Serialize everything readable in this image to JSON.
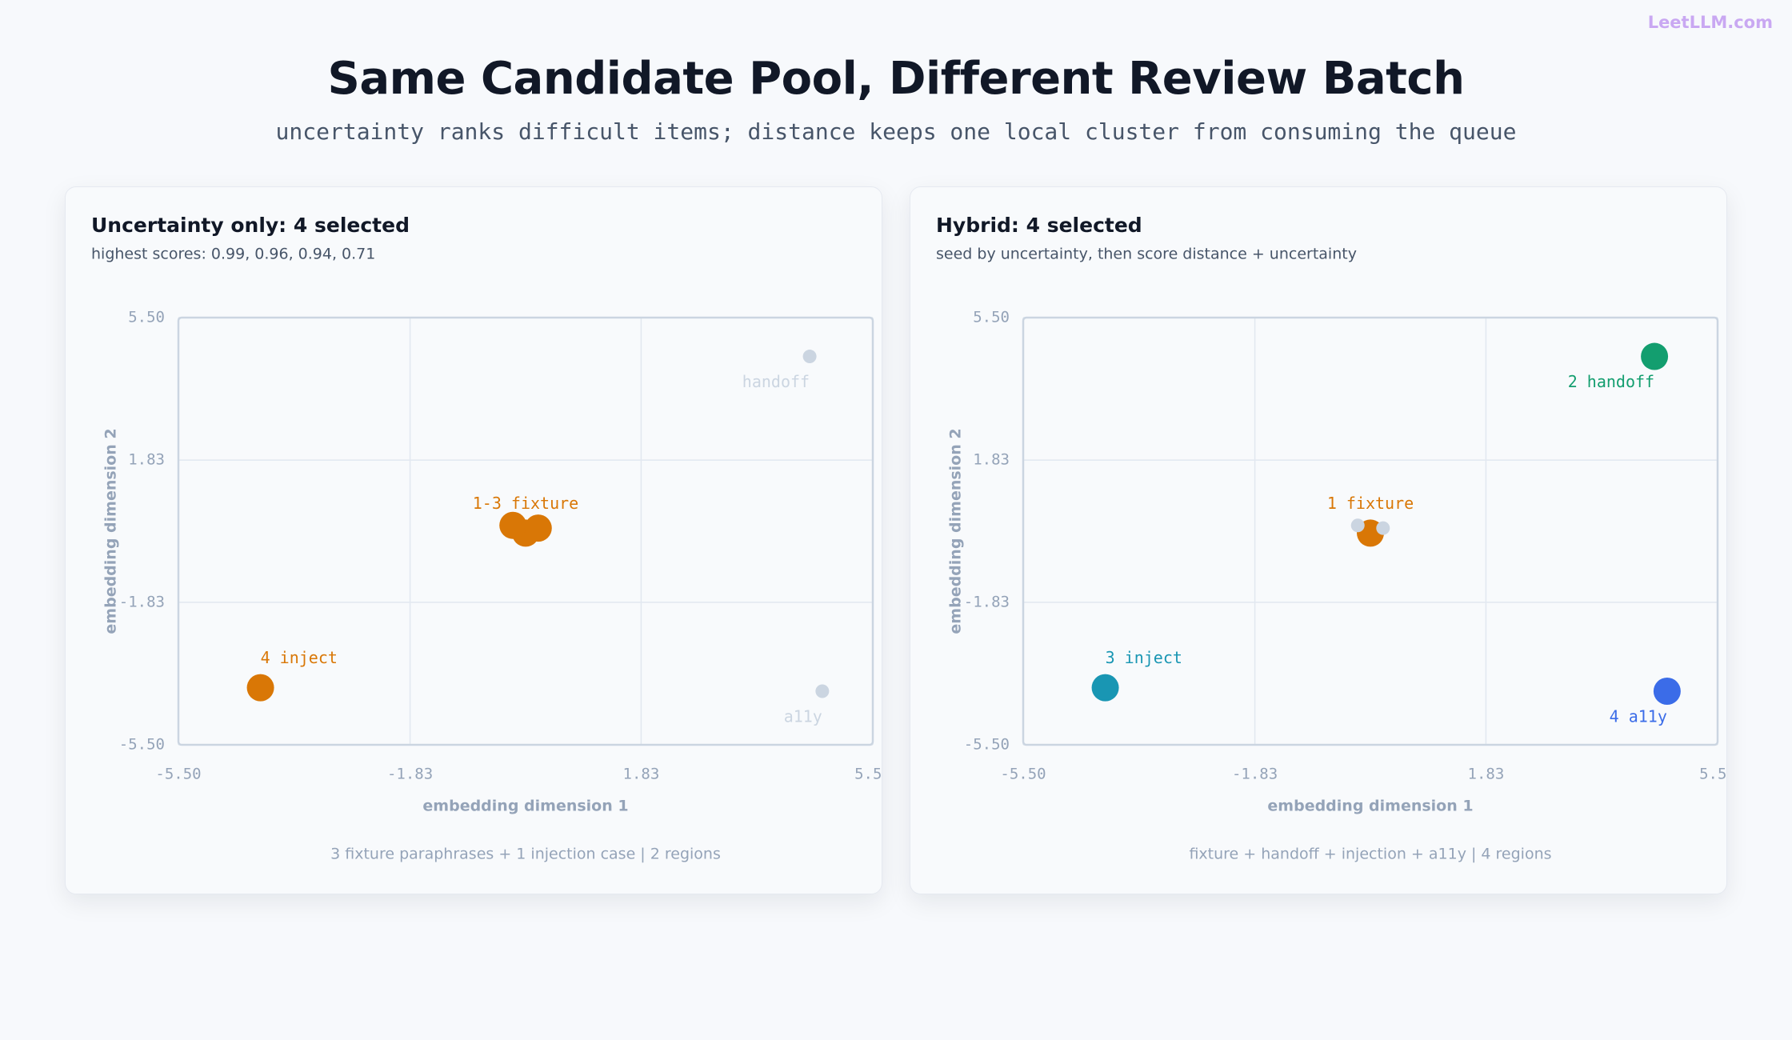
{
  "watermark": "LeetLLM.com",
  "title": "Same Candidate Pool, Different Review Batch",
  "subtitle": "uncertainty ranks difficult items; distance keeps one local cluster from consuming the queue",
  "chart_data": [
    {
      "type": "scatter",
      "title": "Uncertainty only: 4 selected",
      "subtitle": "highest scores: 0.99, 0.96, 0.94, 0.71",
      "x_label": "embedding dimension 1",
      "y_label": "embedding dimension 2",
      "footer": "3 fixture paraphrases + 1 injection case | 2 regions",
      "xlim": [
        -5.5,
        5.5
      ],
      "ylim": [
        -5.5,
        5.5
      ],
      "xticks": [
        {
          "value": -5.5,
          "label": "-5.50"
        },
        -1.83,
        1.83,
        {
          "value": 5.5,
          "label": "5.50"
        }
      ],
      "yticks": [
        {
          "value": -5.5,
          "label": "-5.50"
        },
        -1.83,
        1.83,
        {
          "value": 5.5,
          "label": "5.50"
        }
      ],
      "grid": true,
      "points": [
        {
          "x": 0.0,
          "y": -0.05,
          "selected": true,
          "color": "#d97706",
          "label": "1-3 fixture"
        },
        {
          "x": -0.2,
          "y": 0.15,
          "selected": true,
          "color": "#d97706"
        },
        {
          "x": 0.2,
          "y": 0.08,
          "selected": true,
          "color": "#d97706"
        },
        {
          "x": -4.2,
          "y": -4.03,
          "selected": true,
          "color": "#d97706",
          "label": "4 inject"
        },
        {
          "x": 4.5,
          "y": 4.5,
          "selected": false,
          "color": "#cbd5e1",
          "label": "handoff"
        },
        {
          "x": 4.7,
          "y": -4.12,
          "selected": false,
          "color": "#cbd5e1",
          "label": "a11y"
        }
      ]
    },
    {
      "type": "scatter",
      "title": "Hybrid: 4 selected",
      "subtitle": "seed by uncertainty, then score distance + uncertainty",
      "x_label": "embedding dimension 1",
      "y_label": "embedding dimension 2",
      "footer": "fixture + handoff + injection + a11y | 4 regions",
      "xlim": [
        -5.5,
        5.5
      ],
      "ylim": [
        -5.5,
        5.5
      ],
      "xticks": [
        {
          "value": -5.5,
          "label": "-5.50"
        },
        -1.83,
        1.83,
        {
          "value": 5.5,
          "label": "5.50"
        }
      ],
      "yticks": [
        {
          "value": -5.5,
          "label": "-5.50"
        },
        -1.83,
        1.83,
        {
          "value": 5.5,
          "label": "5.50"
        }
      ],
      "grid": true,
      "points": [
        {
          "x": 0.0,
          "y": -0.05,
          "selected": true,
          "color": "#d97706",
          "label": "1 fixture"
        },
        {
          "x": -0.2,
          "y": 0.15,
          "selected": false,
          "color": "#cbd5e1"
        },
        {
          "x": 0.2,
          "y": 0.08,
          "selected": false,
          "color": "#cbd5e1"
        },
        {
          "x": -4.2,
          "y": -4.03,
          "selected": true,
          "color": "#1996b3",
          "label": "3 inject"
        },
        {
          "x": 4.5,
          "y": 4.5,
          "selected": true,
          "color": "#139e6f",
          "label": "2 handoff"
        },
        {
          "x": 4.7,
          "y": -4.12,
          "selected": true,
          "color": "#3b6ce8",
          "label": "4 a11y"
        }
      ]
    }
  ]
}
